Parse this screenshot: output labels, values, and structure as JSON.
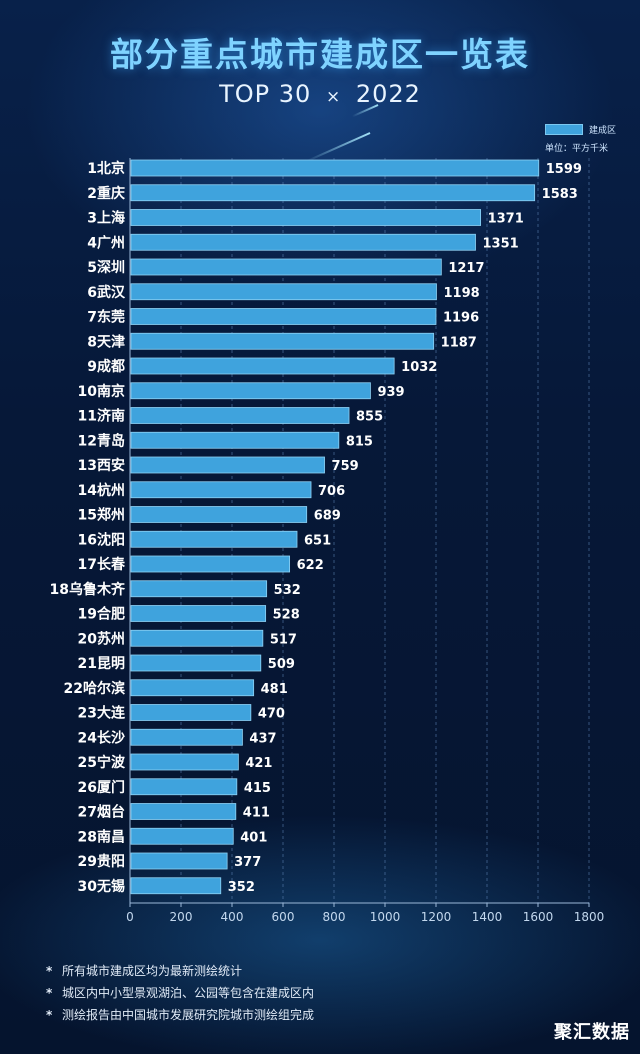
{
  "header": {
    "title": "部分重点城市建成区一览表",
    "subtitle_left": "TOP 30",
    "subtitle_sep": "×",
    "subtitle_right": "2022"
  },
  "legend": {
    "series_label": "建成区",
    "unit": "单位：平方千米",
    "swatch_color": "#3fa3dd"
  },
  "chart_data": {
    "type": "bar",
    "orientation": "horizontal",
    "categories": [
      "1北京",
      "2重庆",
      "3上海",
      "4广州",
      "5深圳",
      "6武汉",
      "7东莞",
      "8天津",
      "9成都",
      "10南京",
      "11济南",
      "12青岛",
      "13西安",
      "14杭州",
      "15郑州",
      "16沈阳",
      "17长春",
      "18乌鲁木齐",
      "19合肥",
      "20苏州",
      "21昆明",
      "22哈尔滨",
      "23大连",
      "24长沙",
      "25宁波",
      "26厦门",
      "27烟台",
      "28南昌",
      "29贵阳",
      "30无锡"
    ],
    "series": [
      {
        "name": "建成区",
        "values": [
          1599,
          1583,
          1371,
          1351,
          1217,
          1198,
          1196,
          1187,
          1032,
          939,
          855,
          815,
          759,
          706,
          689,
          651,
          622,
          532,
          528,
          517,
          509,
          481,
          470,
          437,
          421,
          415,
          411,
          401,
          377,
          352
        ]
      }
    ],
    "xlim": [
      0,
      1800
    ],
    "xticks": [
      0,
      200,
      400,
      600,
      800,
      1000,
      1200,
      1400,
      1600,
      1800
    ],
    "grid": "vertical dashed",
    "legend_position": "top-right"
  },
  "notes": [
    "所有城市建成区均为最新测绘统计",
    "城区内中小型景观湖泊、公园等包含在建成区内",
    "测绘报告由中国城市发展研究院城市测绘组完成"
  ],
  "note_marker": "*",
  "brand": "聚汇数据"
}
